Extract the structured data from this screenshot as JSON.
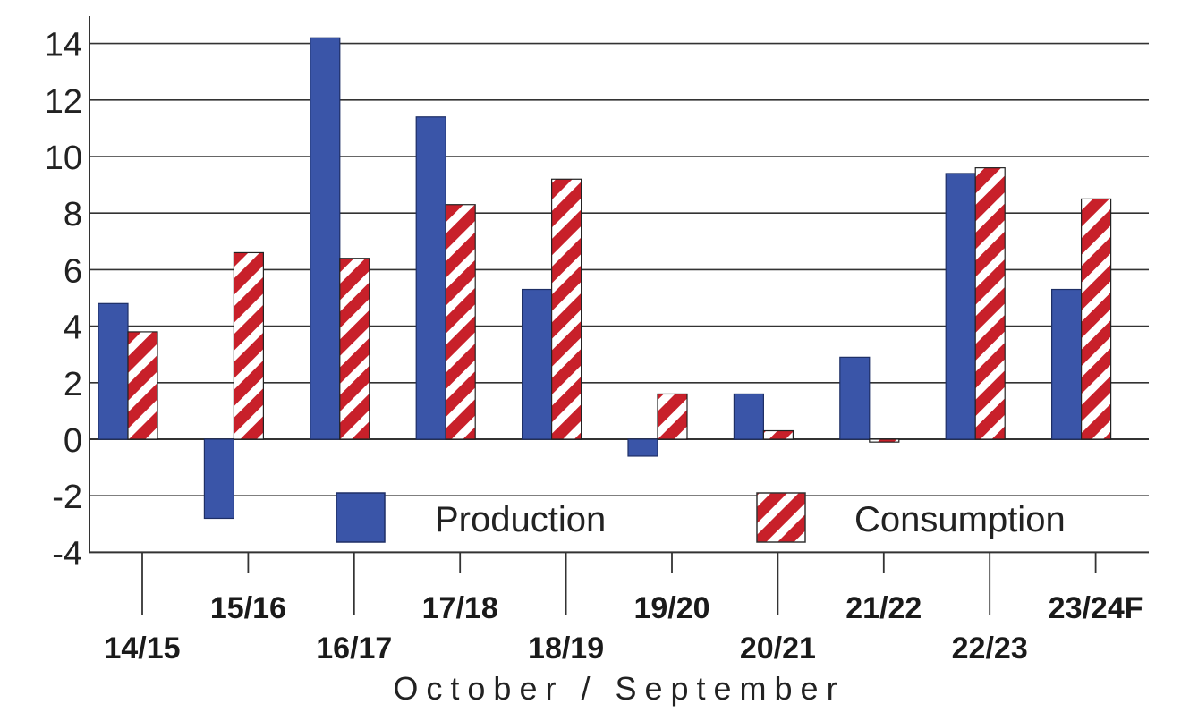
{
  "chart_data": {
    "type": "bar",
    "categories": [
      "14/15",
      "15/16",
      "16/17",
      "17/18",
      "18/19",
      "19/20",
      "20/21",
      "21/22",
      "22/23",
      "23/24F"
    ],
    "series": [
      {
        "name": "Production",
        "values": [
          4.8,
          -2.8,
          14.2,
          11.4,
          5.3,
          -0.6,
          1.6,
          2.9,
          9.4,
          5.3
        ],
        "color": "#3a55a8",
        "pattern": "solid"
      },
      {
        "name": "Consumption",
        "values": [
          3.8,
          6.6,
          6.4,
          8.3,
          9.2,
          1.6,
          0.3,
          -0.1,
          9.6,
          8.5
        ],
        "color": "#c8202a",
        "pattern": "diagonal-stripes"
      }
    ],
    "xlabel": "October / September",
    "ylabel": "",
    "ylim": [
      -4,
      15
    ],
    "yticks": [
      14,
      12,
      10,
      8,
      6,
      4,
      2,
      0,
      -2,
      -4
    ],
    "grid": true,
    "legend": "bottom-inside"
  },
  "colors": {
    "production": "#3a55a8",
    "consumption": "#c8202a",
    "grid": "#333333"
  }
}
